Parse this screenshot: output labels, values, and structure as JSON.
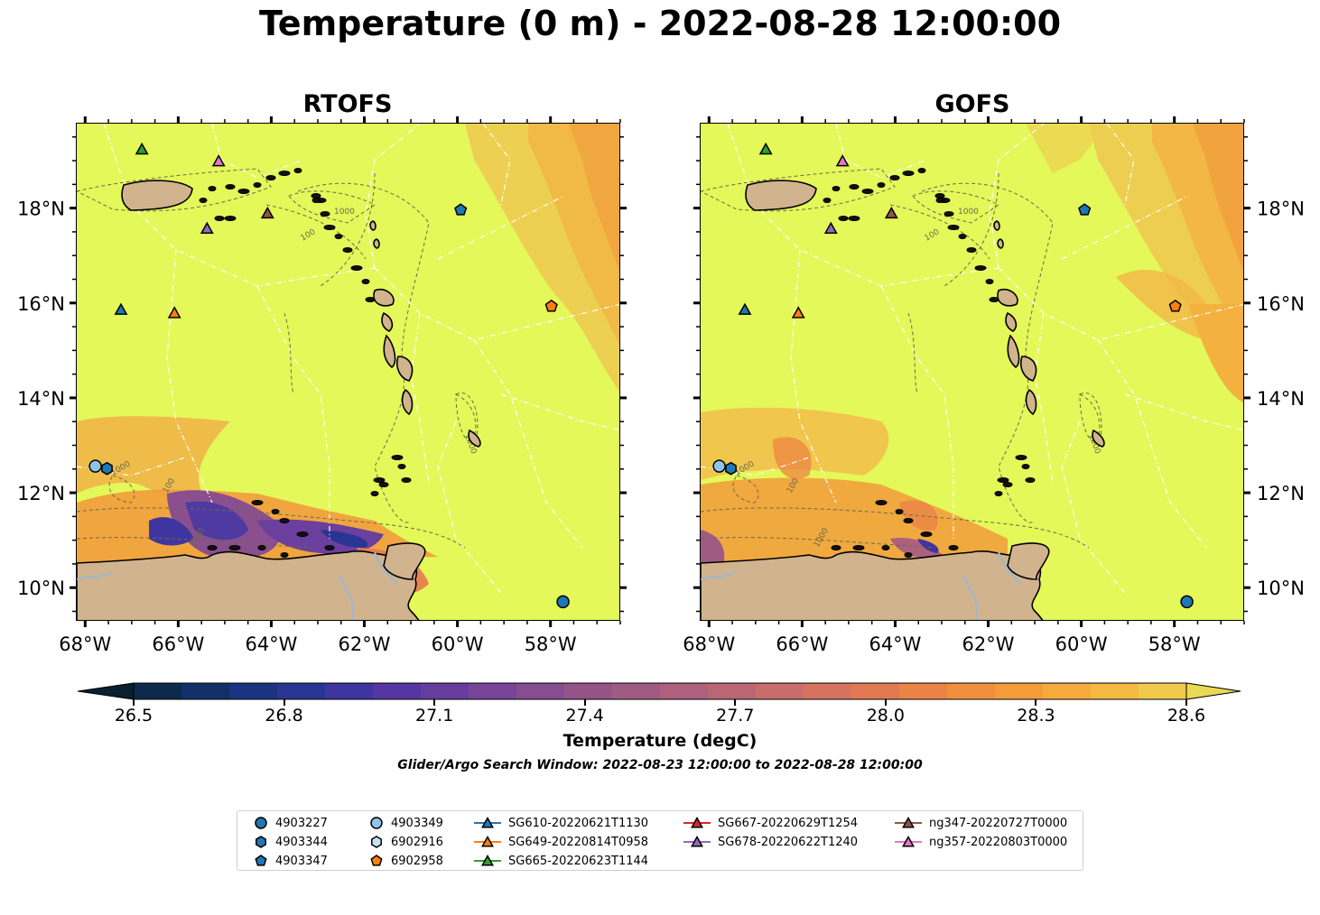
{
  "title": "Temperature (0 m) - 2022-08-28 12:00:00",
  "panels": [
    {
      "id": "rtofs",
      "title": "RTOFS"
    },
    {
      "id": "gofs",
      "title": "GOFS"
    }
  ],
  "map_extent": {
    "lon_min": -68.2,
    "lon_max": -56.5,
    "lat_min": 9.3,
    "lat_max": 19.8
  },
  "lon_ticks": [
    "68°W",
    "66°W",
    "64°W",
    "62°W",
    "60°W",
    "58°W"
  ],
  "lat_ticks": [
    "10°N",
    "12°N",
    "14°N",
    "16°N",
    "18°N"
  ],
  "colorbar": {
    "label": "Temperature (degC)",
    "ticks": [
      "26.5",
      "26.8",
      "27.1",
      "27.4",
      "27.7",
      "28.0",
      "28.3",
      "28.6"
    ],
    "range": [
      26.5,
      28.6
    ],
    "step": 0.1,
    "extend": "both",
    "colors": [
      "#08202f",
      "#0d2a4d",
      "#122f68",
      "#1b3380",
      "#283593",
      "#3f35a0",
      "#5537a4",
      "#673c9f",
      "#774597",
      "#864d90",
      "#945488",
      "#a05b82",
      "#ad617c",
      "#ba6775",
      "#c86d6b",
      "#d6735f",
      "#e17a52",
      "#eb8346",
      "#f18f3d",
      "#f59c3a",
      "#f6aa3c",
      "#f4b944",
      "#f0c94d",
      "#ead954"
    ]
  },
  "search_window": "Glider/Argo Search Window: 2022-08-23 12:00:00 to 2022-08-28 12:00:00",
  "contour_labels": [
    "100",
    "1000"
  ],
  "colors": {
    "ocean_base": "#e4f85a",
    "land": "#d1b38e",
    "land_edge": "#000000",
    "rivers": "#9db7d4",
    "eez_lines": "#ffffff",
    "bathymetry_contour": "#6b6b4a"
  },
  "legend": [
    {
      "label": "4903227",
      "marker": "circle",
      "color": "#1f77b4"
    },
    {
      "label": "4903344",
      "marker": "hexagon",
      "color": "#1f77b4"
    },
    {
      "label": "4903347",
      "marker": "pentagon",
      "color": "#1f77b4"
    },
    {
      "label": "4903349",
      "marker": "circle",
      "color": "#8ec4e8"
    },
    {
      "label": "6902916",
      "marker": "hexagon",
      "color": "#c2e2f5"
    },
    {
      "label": "6902958",
      "marker": "pentagon",
      "color": "#ff7f0e"
    },
    {
      "label": "SG610-20220621T1130",
      "marker": "triangle-line",
      "color": "#1f77b4"
    },
    {
      "label": "SG649-20220814T0958",
      "marker": "triangle-line",
      "color": "#ff7f0e"
    },
    {
      "label": "SG665-20220623T1144",
      "marker": "triangle-line",
      "color": "#2ca02c"
    },
    {
      "label": "SG667-20220629T1254",
      "marker": "triangle-line",
      "color": "#d62728"
    },
    {
      "label": "SG678-20220622T1240",
      "marker": "triangle-line",
      "color": "#9467bd"
    },
    {
      "label": "ng347-20220727T0000",
      "marker": "triangle-line",
      "color": "#8c564b"
    },
    {
      "label": "ng357-20220803T0000",
      "marker": "triangle-line",
      "color": "#e377c2"
    }
  ],
  "observations": [
    {
      "label": "4903227",
      "lon": -57.75,
      "lat": 9.72
    },
    {
      "label": "4903349",
      "lon": -67.8,
      "lat": 12.58
    },
    {
      "label": "4903344",
      "lon": -67.55,
      "lat": 12.53
    },
    {
      "label": "4903347",
      "lon": -59.95,
      "lat": 17.98
    },
    {
      "label": "6902958",
      "lon": -58.0,
      "lat": 15.95
    },
    {
      "label": "SG610-20220621T1130",
      "lon": -67.25,
      "lat": 15.87
    },
    {
      "label": "SG649-20220814T0958",
      "lon": -66.1,
      "lat": 15.8
    },
    {
      "label": "SG665-20220623T1144",
      "lon": -66.8,
      "lat": 19.25
    },
    {
      "label": "ng357-20220803T0000",
      "lon": -65.15,
      "lat": 19.0
    },
    {
      "label": "SG678-20220622T1240",
      "lon": -65.4,
      "lat": 17.58
    },
    {
      "label": "ng347-20220727T0000",
      "lon": -64.1,
      "lat": 17.9
    }
  ]
}
